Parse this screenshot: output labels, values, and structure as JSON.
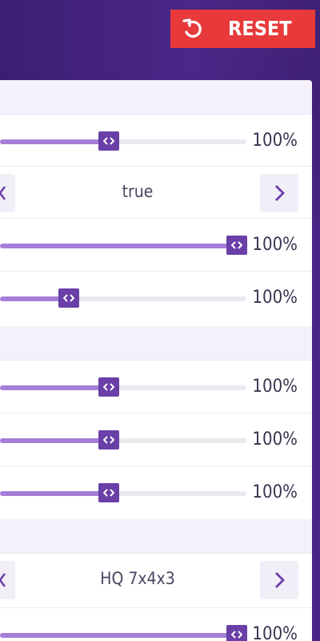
{
  "header": {
    "reset_label": "RESET",
    "accent": "#e83a3a"
  },
  "colors": {
    "fill": "#a57ed8",
    "handle": "#6a3fa8",
    "track": "#ebe8f0"
  },
  "sections": [
    {
      "rows": [
        {
          "type": "slider",
          "level": 0.44,
          "value": "100%"
        },
        {
          "type": "select",
          "value": "true"
        },
        {
          "type": "slider",
          "level": 0.96,
          "value": "100%"
        },
        {
          "type": "slider",
          "level": 0.28,
          "value": "100%"
        }
      ]
    },
    {
      "rows": [
        {
          "type": "slider",
          "level": 0.44,
          "value": "100%"
        },
        {
          "type": "slider",
          "level": 0.44,
          "value": "100%"
        },
        {
          "type": "slider",
          "level": 0.44,
          "value": "100%"
        }
      ]
    },
    {
      "rows": [
        {
          "type": "select",
          "value": "HQ 7x4x3"
        },
        {
          "type": "slider",
          "level": 0.96,
          "value": "100%"
        }
      ]
    }
  ]
}
